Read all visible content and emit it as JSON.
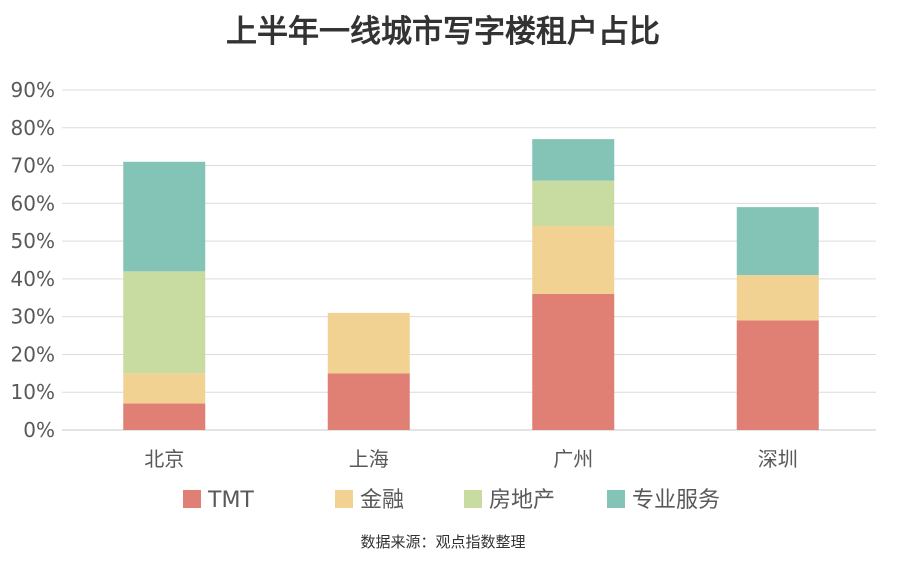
{
  "chart_data": {
    "type": "bar",
    "stacked": true,
    "title": "上半年一线城市写字楼租户占比",
    "categories": [
      "北京",
      "上海",
      "广州",
      "深圳"
    ],
    "series": [
      {
        "name": "TMT",
        "color": "#E07F73",
        "values": [
          7,
          15,
          36,
          29
        ]
      },
      {
        "name": "金融",
        "color": "#F2D293",
        "values": [
          8,
          16,
          18,
          12
        ]
      },
      {
        "name": "房地产",
        "color": "#C8DBA1",
        "values": [
          27,
          0,
          12,
          0
        ]
      },
      {
        "name": "专业服务",
        "color": "#84C4B7",
        "values": [
          29,
          0,
          11,
          18
        ]
      }
    ],
    "ylim": [
      0,
      90
    ],
    "yticks": [
      "0%",
      "10%",
      "20%",
      "30%",
      "40%",
      "50%",
      "60%",
      "70%",
      "80%",
      "90%"
    ],
    "grid": true,
    "legend": "bottom",
    "source": "数据来源：观点指数整理"
  }
}
